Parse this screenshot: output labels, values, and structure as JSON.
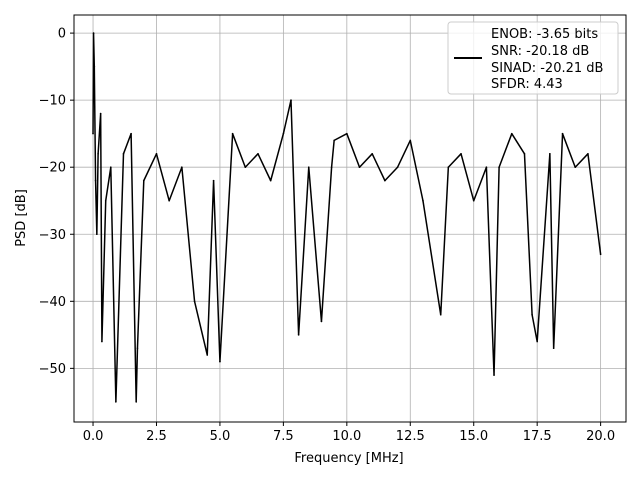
{
  "chart_data": {
    "type": "line",
    "title": "",
    "xlabel": "Frequency [MHz]",
    "ylabel": "PSD [dB]",
    "xlim": [
      -0.75,
      21.0
    ],
    "ylim": [
      -58,
      2.7
    ],
    "x_ticks": [
      0.0,
      2.5,
      5.0,
      7.5,
      10.0,
      12.5,
      15.0,
      17.5,
      20.0
    ],
    "x_tick_labels": [
      "0.0",
      "2.5",
      "5.0",
      "7.5",
      "10.0",
      "12.5",
      "15.0",
      "17.5",
      "20.0"
    ],
    "y_ticks": [
      0,
      -10,
      -20,
      -30,
      -40,
      -50
    ],
    "y_tick_labels": [
      "0",
      "−10",
      "−20",
      "−30",
      "−40",
      "−50"
    ],
    "grid": true,
    "legend_position": "top-right",
    "legend_lines": [
      "ENOB: -3.65 bits",
      "SNR: -20.18 dB",
      "SINAD: -20.21 dB",
      "SFDR: 4.43"
    ],
    "series": [
      {
        "color": "#000000",
        "x": [
          0.0,
          0.02,
          0.05,
          0.1,
          0.15,
          0.2,
          0.3,
          0.35,
          0.5,
          0.7,
          0.9,
          1.2,
          1.5,
          1.7,
          1.75,
          2.0,
          2.5,
          3.0,
          3.5,
          4.0,
          4.5,
          4.75,
          5.0,
          5.5,
          6.0,
          6.5,
          7.0,
          7.5,
          7.8,
          8.1,
          8.5,
          9.0,
          9.4,
          9.5,
          10.0,
          10.5,
          11.0,
          11.5,
          12.0,
          12.5,
          13.0,
          13.7,
          14.0,
          14.5,
          15.0,
          15.5,
          15.8,
          16.0,
          16.5,
          17.0,
          17.3,
          17.5,
          18.0,
          18.15,
          18.5,
          19.0,
          19.5,
          20.0
        ],
        "y": [
          -15,
          0,
          -5,
          -22,
          -30,
          -18,
          -12,
          -46,
          -25,
          -20,
          -55,
          -18,
          -15,
          -55,
          -47,
          -22,
          -18,
          -25,
          -20,
          -40,
          -48,
          -22,
          -49,
          -15,
          -20,
          -18,
          -22,
          -15,
          -10,
          -45,
          -20,
          -43,
          -20,
          -16,
          -15,
          -20,
          -18,
          -22,
          -20,
          -16,
          -25,
          -42,
          -20,
          -18,
          -25,
          -20,
          -51,
          -20,
          -15,
          -18,
          -42,
          -46,
          -18,
          -47,
          -15,
          -20,
          -18,
          -33
        ]
      }
    ]
  }
}
